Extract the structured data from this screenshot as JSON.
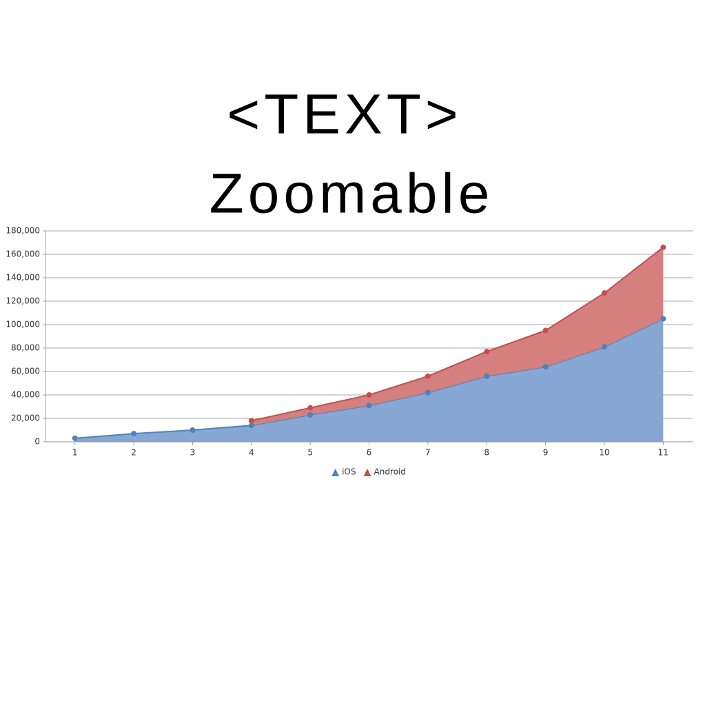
{
  "chart_data": {
    "type": "stacked-area",
    "title": "<TEXT>",
    "subtitle": "Zoomable",
    "x": [
      1,
      2,
      3,
      4,
      5,
      6,
      7,
      8,
      9,
      10,
      11
    ],
    "xlim": [
      0.5,
      11.5
    ],
    "xticks": [
      1,
      2,
      3,
      4,
      5,
      6,
      7,
      8,
      9,
      10,
      11
    ],
    "ylim": [
      0,
      180000
    ],
    "yticks": [
      0,
      {
        "value": 20000,
        "label": "20,000"
      },
      {
        "value": 40000,
        "label": "40,000"
      },
      {
        "value": 60000,
        "label": "60,000"
      },
      {
        "value": 80000,
        "label": "80,000"
      },
      {
        "value": 100000,
        "label": "100,000"
      },
      {
        "value": 120000,
        "label": "120,000"
      },
      {
        "value": 140000,
        "label": "140,000"
      },
      {
        "value": 160000,
        "label": "160,000"
      },
      {
        "value": 180000,
        "label": "180,000"
      }
    ],
    "grid": true,
    "legend": "bottom",
    "series": [
      {
        "name": "iOS",
        "color": "#4f81bc",
        "fill": "#86a7d3",
        "values": [
          3000,
          7000,
          10000,
          14000,
          23000,
          31000,
          42000,
          56000,
          64000,
          81000,
          105000
        ]
      },
      {
        "name": "Android",
        "color": "#c0504e",
        "fill": "#d57f7e",
        "values": [
          null,
          null,
          null,
          4000,
          6000,
          9000,
          14000,
          21000,
          31000,
          46000,
          61000
        ]
      }
    ]
  }
}
